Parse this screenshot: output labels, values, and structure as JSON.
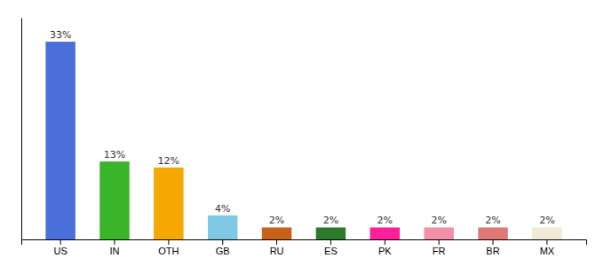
{
  "chart_data": {
    "type": "bar",
    "categories": [
      "US",
      "IN",
      "OTH",
      "GB",
      "RU",
      "ES",
      "PK",
      "FR",
      "BR",
      "MX"
    ],
    "values": [
      33,
      13,
      12,
      4,
      2,
      2,
      2,
      2,
      2,
      2
    ],
    "value_labels": [
      "33%",
      "13%",
      "12%",
      "4%",
      "2%",
      "2%",
      "2%",
      "2%",
      "2%",
      "2%"
    ],
    "colors": [
      "#4a6fdb",
      "#3ab529",
      "#f5a800",
      "#7ec8e3",
      "#c8621a",
      "#2d7a2d",
      "#ff1f9c",
      "#f48faa",
      "#e07878",
      "#f0ead6"
    ],
    "ylim": [
      0,
      37
    ],
    "grid": false,
    "data_labels": true,
    "tick_labels": "x"
  }
}
